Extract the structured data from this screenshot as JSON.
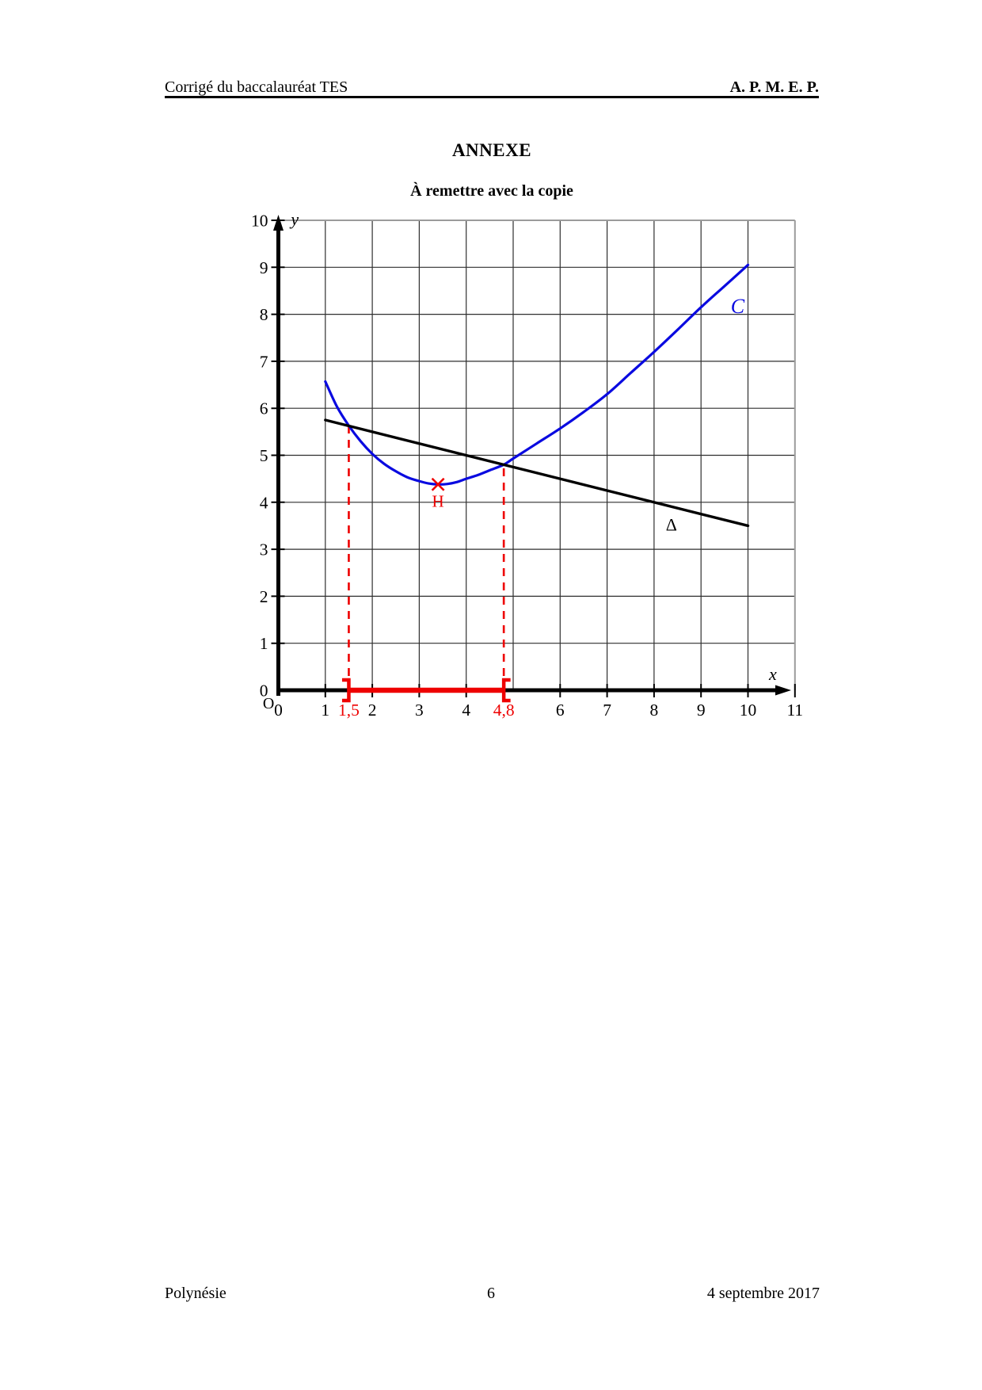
{
  "header": {
    "left": "Corrigé du baccalauréat TES",
    "right": "A. P. M. E. P."
  },
  "titles": {
    "main": "ANNEXE",
    "sub": "À remettre avec la copie"
  },
  "footer": {
    "left": "Polynésie",
    "page_number": "6",
    "right": "4 septembre 2017"
  },
  "chart_data": {
    "type": "line",
    "title": "",
    "xlabel": "x",
    "ylabel": "y",
    "xlim": [
      0,
      11
    ],
    "ylim": [
      0,
      10
    ],
    "grid": true,
    "legend_position": "none",
    "x_ticks": [
      {
        "v": 0,
        "label": "0"
      },
      {
        "v": 1,
        "label": "1"
      },
      {
        "v": 1.5,
        "label": "1,5",
        "color": "red"
      },
      {
        "v": 2,
        "label": "2"
      },
      {
        "v": 3,
        "label": "3"
      },
      {
        "v": 4,
        "label": "4"
      },
      {
        "v": 4.8,
        "label": "4,8",
        "color": "red"
      },
      {
        "v": 6,
        "label": "6"
      },
      {
        "v": 7,
        "label": "7"
      },
      {
        "v": 8,
        "label": "8"
      },
      {
        "v": 9,
        "label": "9"
      },
      {
        "v": 10,
        "label": "10"
      },
      {
        "v": 11,
        "label": "11"
      }
    ],
    "y_ticks": [
      {
        "v": 0,
        "label": "0"
      },
      {
        "v": 1,
        "label": "1"
      },
      {
        "v": 2,
        "label": "2"
      },
      {
        "v": 3,
        "label": "3"
      },
      {
        "v": 4,
        "label": "4"
      },
      {
        "v": 5,
        "label": "5"
      },
      {
        "v": 6,
        "label": "6"
      },
      {
        "v": 7,
        "label": "7"
      },
      {
        "v": 8,
        "label": "8"
      },
      {
        "v": 9,
        "label": "9"
      },
      {
        "v": 10,
        "label": "10"
      }
    ],
    "origin_label": {
      "text": "O",
      "x": -0.21,
      "y": -0.39
    },
    "x_axis_label": {
      "text": "x",
      "x": 10.53,
      "y": 0.22
    },
    "y_axis_label": {
      "text": "y",
      "x": 0.35,
      "y": 9.9
    },
    "series": [
      {
        "name": "curve-C",
        "style": "smooth",
        "color": "#0a0ae0",
        "width": 3.2,
        "points": [
          [
            1,
            6.57
          ],
          [
            1.25,
            6.03
          ],
          [
            1.5,
            5.63
          ],
          [
            1.75,
            5.3
          ],
          [
            2,
            5.03
          ],
          [
            2.25,
            4.82
          ],
          [
            2.5,
            4.66
          ],
          [
            2.75,
            4.53
          ],
          [
            3,
            4.45
          ],
          [
            3.2,
            4.4
          ],
          [
            3.4,
            4.38
          ],
          [
            3.6,
            4.39
          ],
          [
            3.8,
            4.43
          ],
          [
            4,
            4.5
          ],
          [
            4.25,
            4.58
          ],
          [
            4.5,
            4.68
          ],
          [
            4.8,
            4.8
          ],
          [
            5,
            4.93
          ],
          [
            5.5,
            5.25
          ],
          [
            6,
            5.57
          ],
          [
            6.5,
            5.92
          ],
          [
            7,
            6.3
          ],
          [
            7.5,
            6.75
          ],
          [
            8,
            7.2
          ],
          [
            8.5,
            7.67
          ],
          [
            9,
            8.15
          ],
          [
            9.5,
            8.6
          ],
          [
            10,
            9.05
          ]
        ]
      },
      {
        "name": "line-delta",
        "style": "straight",
        "color": "#000000",
        "width": 3.4,
        "points": [
          [
            1,
            5.75
          ],
          [
            10,
            3.5
          ]
        ]
      }
    ],
    "annotations": {
      "curve_label": {
        "text": "C",
        "x": 9.78,
        "y": 8.03
      },
      "line_label": {
        "text": "Δ",
        "x": 8.37,
        "y": 3.4
      },
      "point_H": {
        "label": "H",
        "x": 3.4,
        "y": 4.38
      },
      "dashed_guides": [
        {
          "x": 1.5,
          "top": 5.625
        },
        {
          "x": 4.8,
          "top": 4.8
        }
      ],
      "interval_segment": {
        "from": 1.5,
        "to": 4.8
      }
    },
    "colors": {
      "curve_blue": "#0a0ae0",
      "accent_red": "#ee0000",
      "grid": "#2f2f2f",
      "frame": "#9b9b9b",
      "axis": "#000000"
    }
  }
}
